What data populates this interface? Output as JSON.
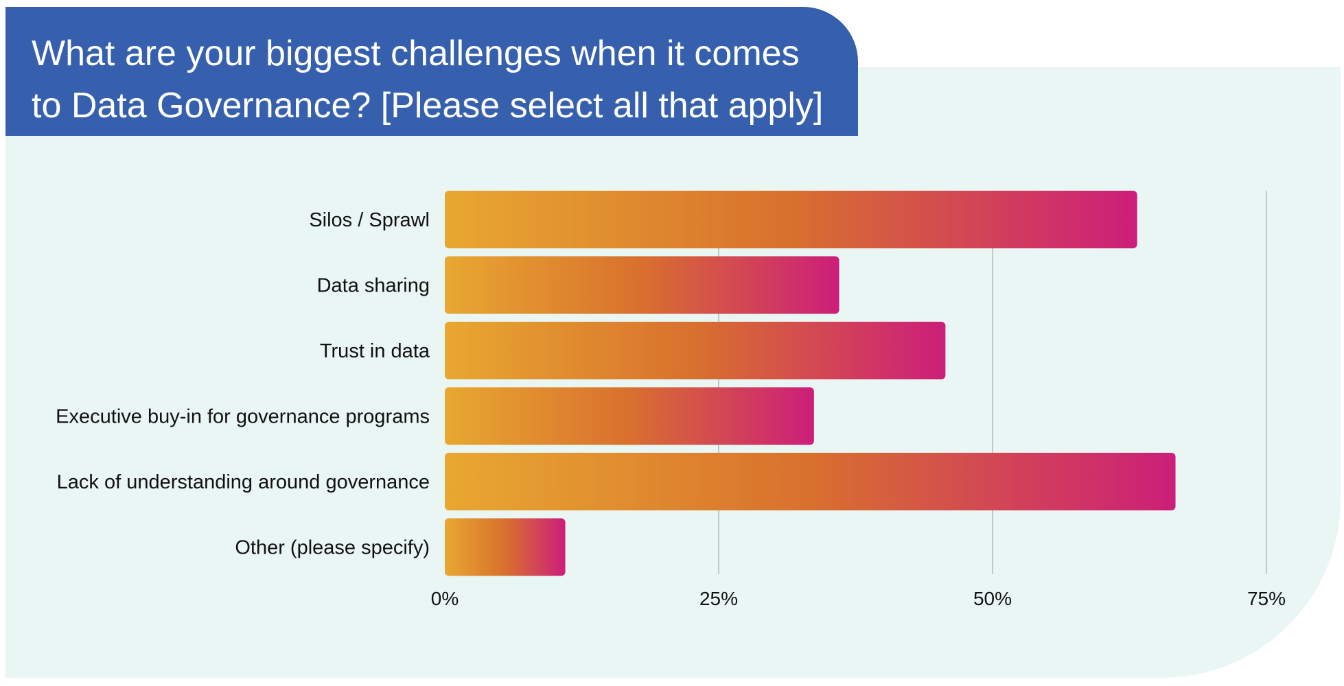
{
  "chart_data": {
    "type": "bar",
    "orientation": "horizontal",
    "title": "What are your biggest challenges when it comes to Data Governance? [Please select all that apply]",
    "categories": [
      "Silos / Sprawl",
      "Data sharing",
      "Trust in data",
      "Executive buy-in for governance programs",
      "Lack of understanding around governance",
      "Other (please specify)"
    ],
    "values": [
      63.2,
      36.0,
      45.7,
      33.7,
      66.7,
      11.0
    ],
    "xlim": [
      0,
      75
    ],
    "xticks": [
      0,
      25,
      50,
      75
    ],
    "tick_labels": [
      "0%",
      "25%",
      "50%",
      "75%"
    ],
    "xlabel": "",
    "ylabel": "",
    "grid": true,
    "legend": "none"
  },
  "colors": {
    "title_bg": "#3660ad",
    "panel_bg": "#eaf6f4",
    "bar_start": "#e8a830",
    "bar_mid": "#d8702e",
    "bar_end": "#cc1e7a",
    "grid": "#c2c8c8"
  }
}
